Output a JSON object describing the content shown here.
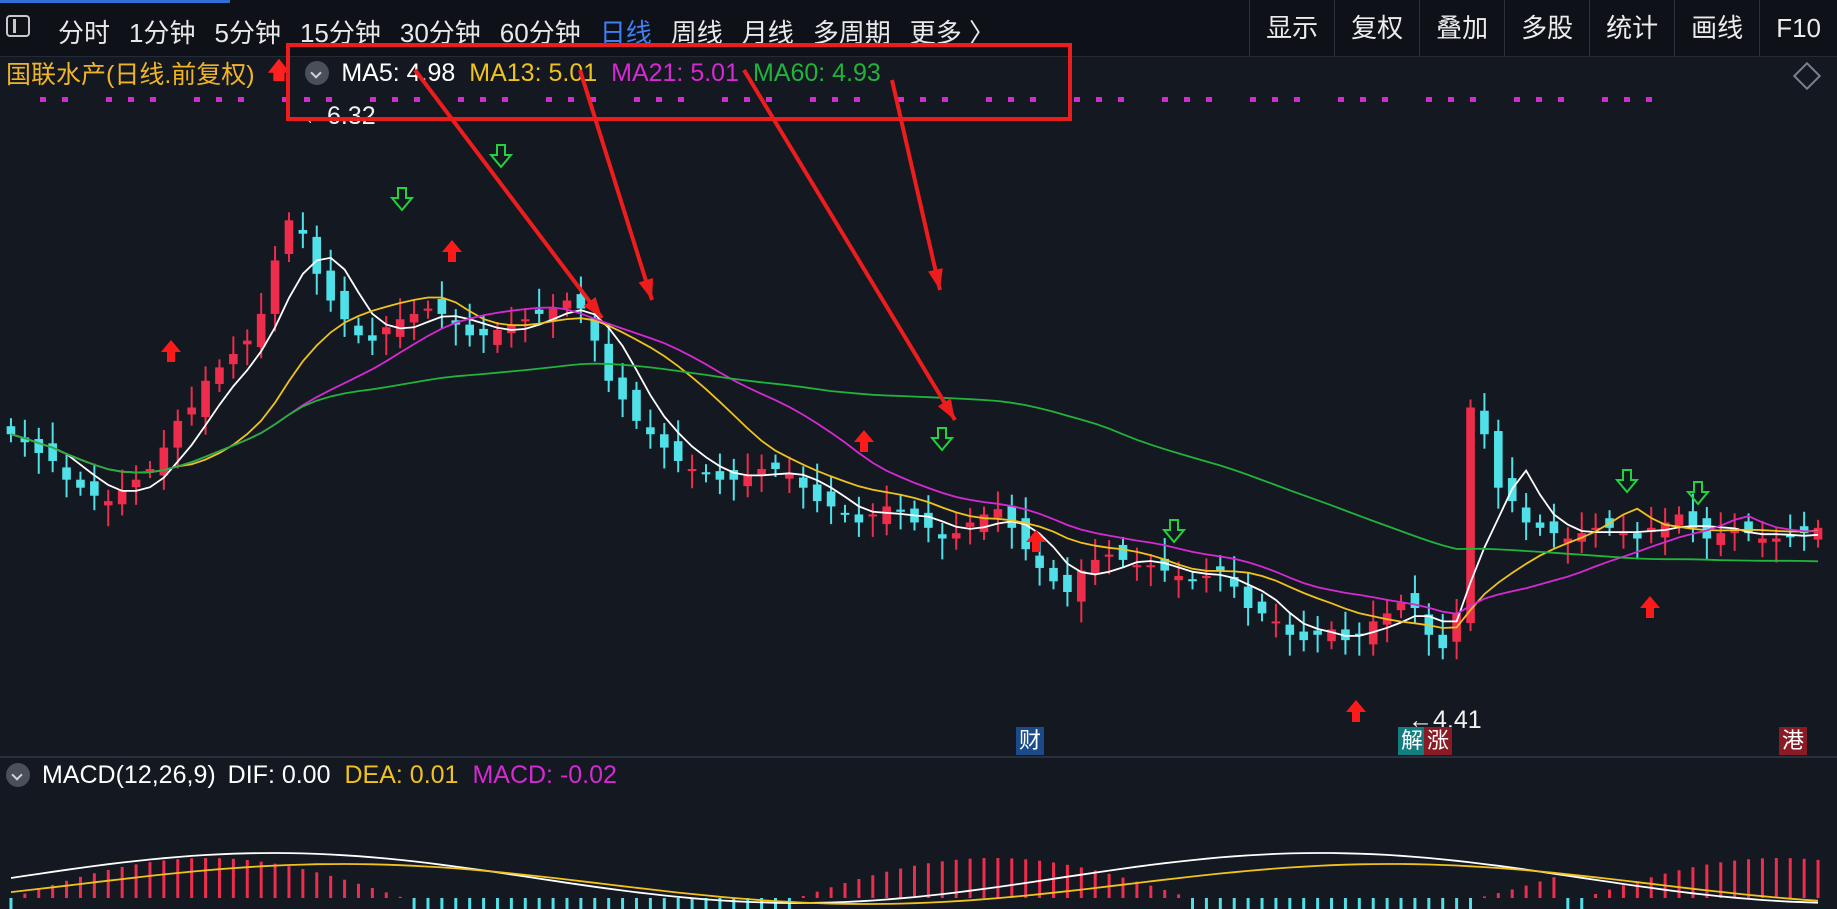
{
  "toolbar": {
    "tabs": [
      {
        "label": "分时"
      },
      {
        "label": "1分钟"
      },
      {
        "label": "5分钟"
      },
      {
        "label": "15分钟"
      },
      {
        "label": "30分钟"
      },
      {
        "label": "60分钟"
      },
      {
        "label": "日线",
        "active": true
      },
      {
        "label": "周线"
      },
      {
        "label": "月线"
      },
      {
        "label": "多周期"
      },
      {
        "label": "更多 〉"
      }
    ],
    "tools": [
      {
        "label": "显示"
      },
      {
        "label": "复权"
      },
      {
        "label": "叠加"
      },
      {
        "label": "多股"
      },
      {
        "label": "统计"
      },
      {
        "label": "画线"
      },
      {
        "label": "F10"
      }
    ]
  },
  "legend": {
    "stock": "国联水产",
    "desc": "(日线.前复权)",
    "ma5": "MA5: 4.98",
    "ma13": "MA13: 5.01",
    "ma21": "MA21: 5.01",
    "ma60": "MA60: 4.93"
  },
  "price_labels": {
    "high": "6.32",
    "low": "4.41"
  },
  "markers": {
    "cai": "财",
    "jie": "解",
    "zhang": "涨",
    "gang": "港"
  },
  "macd": {
    "label": "MACD(12,26,9)",
    "dif": "DIF: 0.00",
    "dea": "DEA: 0.01",
    "macd": "MACD: -0.02"
  },
  "colors": {
    "up": "#ee2d4c",
    "down": "#4fe0e8",
    "ma5": "#ffffff",
    "ma13": "#f0c21d",
    "ma21": "#d52ad2",
    "ma60": "#21b33c",
    "annotation": "#ee1d1d",
    "active_tab": "#3f7ff5"
  },
  "chart_data": {
    "type": "candlestick",
    "price_ylim": [
      4.2,
      6.5
    ],
    "high_label": 6.32,
    "low_label": 4.41,
    "close_approx": [
      5.25,
      5.22,
      5.18,
      5.15,
      5.08,
      5.05,
      5.02,
      5.0,
      5.04,
      5.08,
      5.12,
      5.2,
      5.3,
      5.35,
      5.45,
      5.5,
      5.55,
      5.6,
      5.7,
      5.9,
      6.05,
      6.0,
      5.85,
      5.75,
      5.68,
      5.62,
      5.6,
      5.65,
      5.68,
      5.7,
      5.72,
      5.7,
      5.66,
      5.62,
      5.62,
      5.64,
      5.66,
      5.68,
      5.7,
      5.72,
      5.75,
      5.72,
      5.6,
      5.45,
      5.38,
      5.3,
      5.25,
      5.2,
      5.15,
      5.12,
      5.1,
      5.08,
      5.08,
      5.1,
      5.12,
      5.12,
      5.1,
      5.05,
      5.0,
      4.98,
      4.95,
      4.92,
      4.95,
      4.98,
      4.96,
      4.92,
      4.9,
      4.86,
      4.88,
      4.92,
      4.95,
      4.97,
      4.9,
      4.82,
      4.75,
      4.7,
      4.66,
      4.74,
      4.78,
      4.8,
      4.78,
      4.76,
      4.76,
      4.74,
      4.72,
      4.7,
      4.72,
      4.74,
      4.68,
      4.6,
      4.58,
      4.55,
      4.5,
      4.48,
      4.5,
      4.52,
      4.48,
      4.5,
      4.55,
      4.58,
      4.62,
      4.6,
      4.5,
      4.45,
      4.58,
      5.35,
      5.25,
      5.05,
      5.0,
      4.92,
      4.9,
      4.88,
      4.86,
      4.88,
      4.9,
      4.9,
      4.88,
      4.86,
      4.9,
      4.92,
      4.95,
      4.9,
      4.86,
      4.88,
      4.9,
      4.88,
      4.86,
      4.86,
      4.87,
      4.88,
      4.9
    ],
    "series": [
      {
        "name": "MA5",
        "last": 4.98
      },
      {
        "name": "MA13",
        "last": 5.01
      },
      {
        "name": "MA21",
        "last": 5.01
      },
      {
        "name": "MA60",
        "last": 4.93
      }
    ],
    "macd": {
      "dif": 0.0,
      "dea": 0.01,
      "macd": -0.02
    }
  }
}
